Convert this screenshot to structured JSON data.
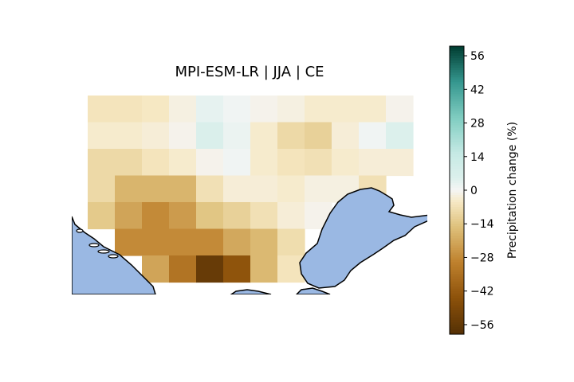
{
  "title": "MPI-ESM-LR | JJA | CE",
  "colorbar": {
    "label": "Precipitation change (%)",
    "min": -60,
    "max": 60,
    "ticks": [
      56,
      42,
      28,
      14,
      0,
      -14,
      -28,
      -42,
      -56
    ],
    "tick_labels": [
      "56",
      "42",
      "28",
      "14",
      "0",
      "−14",
      "−28",
      "−42",
      "−56"
    ],
    "colormap": "BrBG"
  },
  "chart_data": {
    "type": "heatmap",
    "title": "MPI-ESM-LR | JJA | CE",
    "colorbar_label": "Precipitation change (%)",
    "value_range": [
      -60,
      60
    ],
    "rows": [
      [
        -6,
        -6,
        -5,
        -2,
        3,
        1,
        -1,
        -2,
        -4,
        -4,
        -4,
        -1
      ],
      [
        -4,
        -4,
        -3,
        -1,
        6,
        2,
        -4,
        -9,
        -11,
        -3,
        1,
        5
      ],
      [
        -9,
        -9,
        -6,
        -4,
        -1,
        1,
        -4,
        -6,
        -7,
        -4,
        -3,
        -3
      ],
      [
        -9,
        -18,
        -18,
        -18,
        -7,
        -3,
        -3,
        -4,
        -2,
        -2,
        -7,
        null
      ],
      [
        -13,
        -22,
        -28,
        -24,
        -14,
        -11,
        -7,
        -3,
        -1,
        null,
        null,
        null
      ],
      [
        null,
        -28,
        -28,
        -28,
        -28,
        -21,
        -17,
        -8,
        null,
        null,
        null,
        null
      ],
      [
        null,
        null,
        -22,
        -34,
        -55,
        -44,
        -17,
        -6,
        null,
        null,
        null,
        null
      ]
    ]
  },
  "colors": {
    "sea": "#9ab8e3",
    "coast": "#000000"
  }
}
